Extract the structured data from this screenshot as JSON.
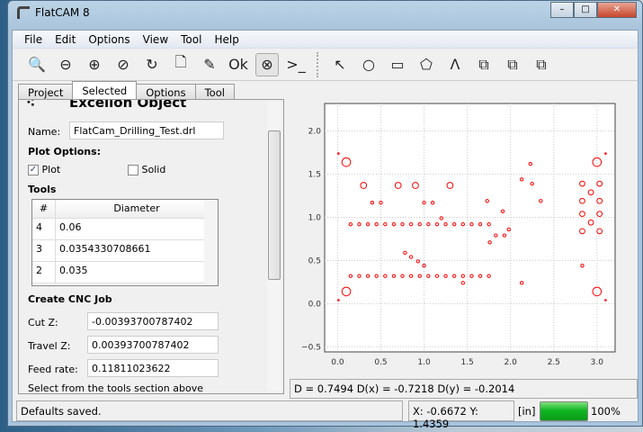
{
  "window": {
    "title": "FlatCAM 8",
    "minimize": "–",
    "maximize": "□",
    "close": "✕"
  },
  "menu": [
    "File",
    "Edit",
    "Options",
    "View",
    "Tool",
    "Help"
  ],
  "toolbar": [
    {
      "icon": "zoom-fit-icon",
      "glyph": "🔍"
    },
    {
      "icon": "zoom-out-icon",
      "glyph": "⊖"
    },
    {
      "icon": "zoom-in-icon",
      "glyph": "⊕"
    },
    {
      "icon": "clear-plot-icon",
      "glyph": "⊘"
    },
    {
      "icon": "replot-icon",
      "glyph": "↻"
    },
    {
      "icon": "new-geometry-icon",
      "glyph": "🗋"
    },
    {
      "icon": "edit-geometry-icon",
      "glyph": "✎"
    },
    {
      "icon": "update-geometry-icon",
      "glyph": "Ok"
    },
    {
      "icon": "delete-object-icon",
      "glyph": "⊗"
    },
    {
      "icon": "shell-icon",
      "glyph": ">_"
    }
  ],
  "draw_toolbar": [
    {
      "icon": "select-arrow-icon",
      "glyph": "↖"
    },
    {
      "icon": "circle-icon",
      "glyph": "○"
    },
    {
      "icon": "rectangle-icon",
      "glyph": "▭"
    },
    {
      "icon": "polygon-icon",
      "glyph": "⬠"
    },
    {
      "icon": "path-icon",
      "glyph": "Λ"
    },
    {
      "icon": "union-icon",
      "glyph": "⧉"
    },
    {
      "icon": "intersection-icon",
      "glyph": "⧉"
    },
    {
      "icon": "subtract-icon",
      "glyph": "⧉"
    }
  ],
  "tabs": [
    "Project",
    "Selected",
    "Options",
    "Tool"
  ],
  "selected_tab": "Selected",
  "panel": {
    "header": "Excellon Object",
    "name_label": "Name:",
    "name_value": "FlatCam_Drilling_Test.drl",
    "plot_options": "Plot Options:",
    "plot_label": "Plot",
    "plot_checked": true,
    "solid_label": "Solid",
    "solid_checked": false,
    "tools_label": "Tools",
    "tools_columns": [
      "#",
      "Diameter"
    ],
    "tools_rows": [
      {
        "id": "4",
        "dia": "0.06"
      },
      {
        "id": "3",
        "dia": "0.0354330708661"
      },
      {
        "id": "2",
        "dia": "0.035"
      }
    ],
    "cnc_label": "Create CNC Job",
    "cutz_label": "Cut Z:",
    "cutz_value": "-0.00393700787402",
    "travelz_label": "Travel Z:",
    "travelz_value": "0.00393700787402",
    "feed_label": "Feed rate:",
    "feed_value": "0.11811023622",
    "hint": "Select from the tools section above"
  },
  "distance": "D = 0.7494  D(x) = -0.7218  D(y) = -0.2014",
  "status": {
    "message": "Defaults saved.",
    "coords": "X: -0.6672   Y: 1.4359",
    "units": "[in]",
    "progress": 100,
    "progress_text": "100%"
  },
  "chart_data": {
    "type": "scatter",
    "xlim": [
      -0.15,
      3.21
    ],
    "ylim": [
      -0.56,
      2.32
    ],
    "xticks": [
      "0.0",
      "0.5",
      "1.0",
      "1.5",
      "2.0",
      "2.5",
      "3.0"
    ],
    "yticks": [
      "−0.5",
      "0.0",
      "0.5",
      "1.0",
      "1.5",
      "2.0"
    ],
    "grid": true,
    "marker_color": "#ff0000",
    "series": [
      {
        "diameter": 0.1,
        "points": [
          [
            0.1,
            1.64
          ],
          [
            3.0,
            1.64
          ],
          [
            0.1,
            0.14
          ],
          [
            3.0,
            0.14
          ]
        ]
      },
      {
        "diameter": 0.07,
        "points": [
          [
            0.3,
            1.37
          ],
          [
            0.7,
            1.37
          ],
          [
            0.9,
            1.37
          ],
          [
            1.3,
            1.37
          ]
        ]
      },
      {
        "diameter": 0.06,
        "points": [
          [
            2.83,
            1.39
          ],
          [
            3.03,
            1.39
          ],
          [
            2.93,
            1.29
          ],
          [
            2.83,
            1.19
          ],
          [
            3.03,
            1.19
          ],
          [
            2.83,
            1.04
          ],
          [
            3.03,
            1.04
          ],
          [
            2.93,
            0.94
          ],
          [
            2.83,
            0.84
          ],
          [
            3.03,
            0.84
          ]
        ]
      },
      {
        "diameter": 0.035,
        "points": [
          [
            0.15,
            0.92
          ],
          [
            0.25,
            0.92
          ],
          [
            0.35,
            0.92
          ],
          [
            0.45,
            0.92
          ],
          [
            0.55,
            0.92
          ],
          [
            0.65,
            0.92
          ],
          [
            0.75,
            0.92
          ],
          [
            0.85,
            0.92
          ],
          [
            0.95,
            0.92
          ],
          [
            1.05,
            0.92
          ],
          [
            1.15,
            0.92
          ],
          [
            1.25,
            0.92
          ],
          [
            1.35,
            0.92
          ],
          [
            1.45,
            0.92
          ],
          [
            1.55,
            0.92
          ],
          [
            1.65,
            0.92
          ],
          [
            1.75,
            0.92
          ],
          [
            0.15,
            0.32
          ],
          [
            0.25,
            0.32
          ],
          [
            0.35,
            0.32
          ],
          [
            0.45,
            0.32
          ],
          [
            0.55,
            0.32
          ],
          [
            0.65,
            0.32
          ],
          [
            0.75,
            0.32
          ],
          [
            0.85,
            0.32
          ],
          [
            0.95,
            0.32
          ],
          [
            1.05,
            0.32
          ],
          [
            1.15,
            0.32
          ],
          [
            1.25,
            0.32
          ],
          [
            1.35,
            0.32
          ],
          [
            1.45,
            0.32
          ],
          [
            1.55,
            0.32
          ],
          [
            1.65,
            0.32
          ],
          [
            1.75,
            0.32
          ],
          [
            0.4,
            1.17
          ],
          [
            0.5,
            1.17
          ],
          [
            1.0,
            1.17
          ],
          [
            1.1,
            1.17
          ],
          [
            1.2,
            0.99
          ],
          [
            1.73,
            1.19
          ],
          [
            1.91,
            1.07
          ],
          [
            1.98,
            0.86
          ],
          [
            1.83,
            0.79
          ],
          [
            1.93,
            0.79
          ],
          [
            1.76,
            0.71
          ],
          [
            2.13,
            1.44
          ],
          [
            2.23,
            1.62
          ],
          [
            2.25,
            1.39
          ],
          [
            2.35,
            1.19
          ],
          [
            0.78,
            0.59
          ],
          [
            0.85,
            0.54
          ],
          [
            0.93,
            0.49
          ],
          [
            1.0,
            0.44
          ],
          [
            1.45,
            0.24
          ],
          [
            2.13,
            0.24
          ],
          [
            2.83,
            0.44
          ]
        ]
      },
      {
        "diameter": 0.005,
        "points": [
          [
            0.01,
            1.74
          ],
          [
            3.1,
            1.74
          ],
          [
            0.01,
            0.04
          ],
          [
            3.1,
            0.04
          ]
        ]
      }
    ]
  }
}
